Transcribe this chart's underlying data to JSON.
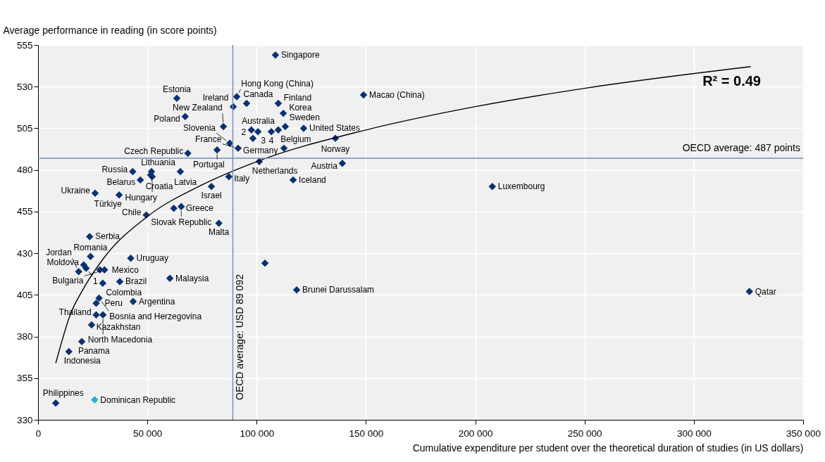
{
  "chart_data": {
    "type": "scatter",
    "xlabel": "Cumulative expenditure per student over the theoretical duration of studies (in US dollars)",
    "ylabel": "Average performance in reading (in score points)",
    "xlim": [
      0,
      350000
    ],
    "ylim": [
      330,
      555
    ],
    "xticks": [
      0,
      {
        "value": 50000,
        "label": "50 000"
      },
      {
        "value": 100000,
        "label": "100 000"
      },
      {
        "value": 150000,
        "label": "150 000"
      },
      {
        "value": 200000,
        "label": "200 000"
      },
      {
        "value": 250000,
        "label": "250 000"
      },
      {
        "value": 300000,
        "label": "300 000"
      },
      {
        "value": 350000,
        "label": "350 000"
      }
    ],
    "yticks": [
      330,
      355,
      380,
      405,
      430,
      455,
      480,
      505,
      530,
      555
    ],
    "grid": true,
    "marker": "diamond",
    "series": [
      {
        "color": "#0b3270",
        "x": [
          108600,
          90900,
          95400,
          89300,
          63500,
          109900,
          148900,
          112200,
          113100,
          121500,
          136000,
          139200,
          116700,
          101200,
          87300,
          79300,
          112500,
          109900,
          106700,
          97600,
          100600,
          98300,
          91500,
          87700,
          84800,
          81900,
          67300,
          68500,
          43300,
          51900,
          52200,
          51500,
          46800,
          65100,
          26100,
          37100,
          65500,
          62100,
          49500,
          82700,
          23600,
          24000,
          42400,
          20900,
          22000,
          18600,
          28300,
          30400,
          29600,
          37400,
          60300,
          27900,
          26600,
          43500,
          26600,
          29700,
          24500,
          20000,
          14100,
          8100,
          103800,
          118300,
          207800,
          325400
        ],
        "values": [
          549,
          524,
          520,
          518,
          523,
          520,
          525,
          514,
          506,
          505,
          499,
          484,
          474,
          485,
          476,
          470,
          493,
          504,
          503,
          504,
          503,
          499,
          493,
          496,
          506,
          492,
          512,
          490,
          479,
          479,
          476,
          477,
          474,
          479,
          466,
          465,
          458,
          457,
          453,
          448,
          440,
          428,
          427,
          423,
          421,
          419,
          420,
          420,
          412,
          413,
          415,
          403,
          400,
          401,
          393,
          393,
          387,
          377,
          371,
          340,
          424,
          408,
          470,
          407
        ]
      },
      {
        "color": "#29aed0",
        "x": [
          25900
        ],
        "values": [
          342
        ]
      },
      {
        "type": "line",
        "marker": "none",
        "color": "#000000",
        "x": [
          8100,
          15000,
          20000,
          30000,
          50000,
          75000,
          100000,
          150000,
          200000,
          250000,
          326000
        ],
        "values": [
          364,
          394,
          407,
          427,
          452,
          471,
          485,
          504,
          518,
          529,
          542
        ]
      }
    ],
    "ref_lines": [
      {
        "axis": "y",
        "value": 487,
        "label": "OECD average: 487 points",
        "color": "#7290bb"
      },
      {
        "axis": "x",
        "value": 89092,
        "label": "OECD average: USD 89 092",
        "color": "#7290bb"
      }
    ],
    "annotations": [
      "R² = 0.49",
      {
        "text": "Singapore",
        "x": 108600,
        "y": 549
      },
      {
        "text": "Hong Kong (China)",
        "x": 90900,
        "y": 524
      },
      {
        "text": "Canada",
        "x": 95400,
        "y": 520
      },
      {
        "text": "Ireland",
        "x": 89300,
        "y": 518
      },
      {
        "text": "Estonia",
        "x": 63500,
        "y": 523
      },
      {
        "text": "Finland",
        "x": 109900,
        "y": 520
      },
      {
        "text": "Macao (China)",
        "x": 148900,
        "y": 525
      },
      {
        "text": "Korea",
        "x": 112200,
        "y": 514
      },
      {
        "text": "Sweden",
        "x": 113100,
        "y": 506
      },
      {
        "text": "United States",
        "x": 121500,
        "y": 505
      },
      {
        "text": "Norway",
        "x": 136000,
        "y": 499
      },
      {
        "text": "Austria",
        "x": 139200,
        "y": 484
      },
      {
        "text": "Iceland",
        "x": 116700,
        "y": 474
      },
      {
        "text": "Netherlands",
        "x": 101200,
        "y": 485
      },
      {
        "text": "Italy",
        "x": 87300,
        "y": 476
      },
      {
        "text": "Israel",
        "x": 79300,
        "y": 470
      },
      {
        "text": "Belgium",
        "x": 112500,
        "y": 493
      },
      {
        "text": "Australia",
        "x": 109900,
        "y": 504
      },
      {
        "text": "4",
        "x": 106700,
        "y": 503
      },
      {
        "text": "2",
        "x": 97600,
        "y": 504
      },
      {
        "text": "3",
        "x": 100600,
        "y": 503
      },
      {
        "text": "Germany",
        "x": 98300,
        "y": 499
      },
      {
        "text": "France",
        "x": 91500,
        "y": 493
      },
      {
        "text": "Slovenia",
        "x": 87700,
        "y": 496
      },
      {
        "text": "New Zealand",
        "x": 84800,
        "y": 506
      },
      {
        "text": "Portugal",
        "x": 81900,
        "y": 492
      },
      {
        "text": "Poland",
        "x": 67300,
        "y": 512
      },
      {
        "text": "Czech Republic",
        "x": 68500,
        "y": 490
      },
      {
        "text": "Russia",
        "x": 43300,
        "y": 479
      },
      {
        "text": "Croatia",
        "x": 51900,
        "y": 479
      },
      {
        "text": "Hungary",
        "x": 52200,
        "y": 476
      },
      {
        "text": "Lithuania",
        "x": 51500,
        "y": 477
      },
      {
        "text": "Belarus",
        "x": 46800,
        "y": 474
      },
      {
        "text": "Latvia",
        "x": 65100,
        "y": 479
      },
      {
        "text": "Ukraine",
        "x": 26100,
        "y": 466
      },
      {
        "text": "Türkiye",
        "x": 37100,
        "y": 465
      },
      {
        "text": "Slovak Republic",
        "x": 65500,
        "y": 458
      },
      {
        "text": "Greece",
        "x": 62100,
        "y": 457
      },
      {
        "text": "Chile",
        "x": 49500,
        "y": 453
      },
      {
        "text": "Malta",
        "x": 82700,
        "y": 448
      },
      {
        "text": "Serbia",
        "x": 23600,
        "y": 440
      },
      {
        "text": "Romania",
        "x": 24000,
        "y": 428
      },
      {
        "text": "Uruguay",
        "x": 42400,
        "y": 427
      },
      {
        "text": "Moldova",
        "x": 20900,
        "y": 423
      },
      {
        "text": "1",
        "x": 22000,
        "y": 421
      },
      {
        "text": "Jordan",
        "x": 18600,
        "y": 419
      },
      {
        "text": "Mexico",
        "x": 28300,
        "y": 420
      },
      {
        "text": "Bulgaria",
        "x": 30400,
        "y": 420
      },
      {
        "text": "Colombia",
        "x": 29600,
        "y": 412
      },
      {
        "text": "Brazil",
        "x": 37400,
        "y": 413
      },
      {
        "text": "Malaysia",
        "x": 60300,
        "y": 415
      },
      {
        "text": "Bosnia and Herzegovina",
        "x": 27900,
        "y": 403
      },
      {
        "text": "Peru",
        "x": 26600,
        "y": 400
      },
      {
        "text": "Argentina",
        "x": 43500,
        "y": 401
      },
      {
        "text": "Thailand",
        "x": 26600,
        "y": 393
      },
      {
        "text": "North Macedonia",
        "x": 29700,
        "y": 393
      },
      {
        "text": "Kazakhstan",
        "x": 24500,
        "y": 387
      },
      {
        "text": "Panama",
        "x": 20000,
        "y": 377
      },
      {
        "text": "Indonesia",
        "x": 14100,
        "y": 371
      },
      {
        "text": "Philippines",
        "x": 8100,
        "y": 340
      },
      {
        "text": "Dominican Republic",
        "x": 25900,
        "y": 342
      },
      {
        "text": "Brunei Darussalam",
        "x": 118300,
        "y": 408
      },
      {
        "text": "Luxembourg",
        "x": 207800,
        "y": 470
      },
      {
        "text": "Qatar",
        "x": 325400,
        "y": 407
      }
    ]
  }
}
